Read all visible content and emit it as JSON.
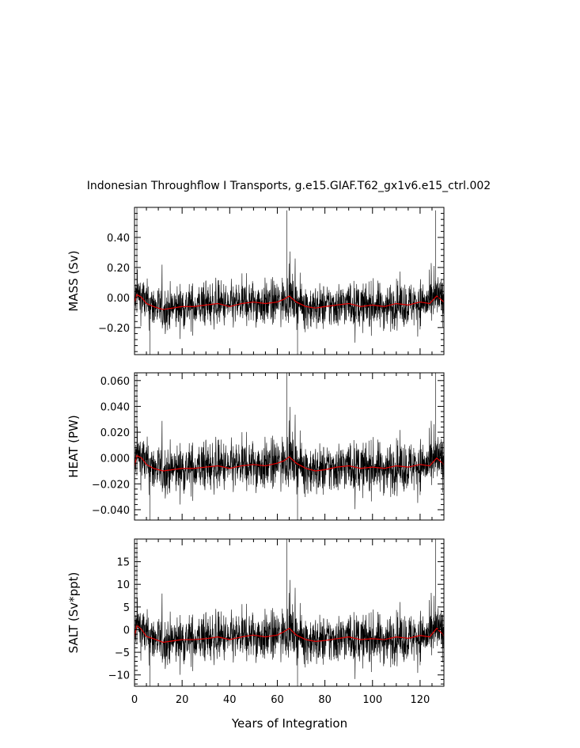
{
  "chart_data": {
    "title": "Indonesian Throughflow I Transports, g.e15.GIAF.T62_gx1v6.e15_ctrl.002",
    "xlabel": "Years of Integration",
    "xlim": [
      0,
      130
    ],
    "xticks": [
      0,
      20,
      40,
      60,
      80,
      100,
      120
    ],
    "xtick_labels": [
      "0",
      "20",
      "40",
      "60",
      "80",
      "100",
      "120"
    ],
    "colors": {
      "raw": "#000000",
      "smoothed": "#e00000"
    },
    "panels": [
      {
        "type": "line",
        "ylabel": "MASS (Sv)",
        "ylim": [
          -0.38,
          0.6
        ],
        "yticks": [
          -0.2,
          0.0,
          0.2,
          0.4
        ],
        "ytick_labels": [
          "−0.20",
          "0.00",
          "0.20",
          "0.40"
        ],
        "raw_mean": -0.05,
        "raw_amp": 0.1,
        "smoothed_path": [
          [
            0,
            -0.03
          ],
          [
            1,
            0.02
          ],
          [
            3,
            0.0
          ],
          [
            5,
            -0.04
          ],
          [
            8,
            -0.06
          ],
          [
            12,
            -0.08
          ],
          [
            16,
            -0.07
          ],
          [
            20,
            -0.06
          ],
          [
            25,
            -0.06
          ],
          [
            30,
            -0.05
          ],
          [
            35,
            -0.04
          ],
          [
            40,
            -0.06
          ],
          [
            45,
            -0.04
          ],
          [
            50,
            -0.03
          ],
          [
            55,
            -0.04
          ],
          [
            60,
            -0.03
          ],
          [
            63,
            -0.01
          ],
          [
            65,
            0.01
          ],
          [
            68,
            -0.03
          ],
          [
            72,
            -0.06
          ],
          [
            76,
            -0.07
          ],
          [
            80,
            -0.06
          ],
          [
            85,
            -0.05
          ],
          [
            90,
            -0.04
          ],
          [
            95,
            -0.06
          ],
          [
            100,
            -0.05
          ],
          [
            105,
            -0.06
          ],
          [
            110,
            -0.04
          ],
          [
            115,
            -0.05
          ],
          [
            120,
            -0.03
          ],
          [
            124,
            -0.04
          ],
          [
            127,
            0.01
          ],
          [
            130,
            -0.03
          ]
        ],
        "spikes": [
          [
            1,
            0.6
          ],
          [
            6.5,
            -0.38
          ],
          [
            64,
            0.58
          ],
          [
            68.5,
            -0.38
          ],
          [
            126.5,
            0.58
          ]
        ]
      },
      {
        "type": "line",
        "ylabel": "HEAT (PW)",
        "ylim": [
          -0.048,
          0.066
        ],
        "yticks": [
          -0.04,
          -0.02,
          0.0,
          0.02,
          0.04,
          0.06
        ],
        "ytick_labels": [
          "−0.040",
          "−0.020",
          "0.000",
          "0.020",
          "0.040",
          "0.060"
        ],
        "raw_mean": -0.007,
        "raw_amp": 0.013,
        "smoothed_path": [
          [
            0,
            -0.006
          ],
          [
            1,
            0.002
          ],
          [
            3,
            0.0
          ],
          [
            5,
            -0.005
          ],
          [
            8,
            -0.008
          ],
          [
            12,
            -0.01
          ],
          [
            16,
            -0.009
          ],
          [
            20,
            -0.008
          ],
          [
            25,
            -0.008
          ],
          [
            30,
            -0.007
          ],
          [
            35,
            -0.006
          ],
          [
            40,
            -0.008
          ],
          [
            45,
            -0.006
          ],
          [
            50,
            -0.005
          ],
          [
            55,
            -0.006
          ],
          [
            60,
            -0.004
          ],
          [
            63,
            -0.002
          ],
          [
            65,
            0.001
          ],
          [
            68,
            -0.004
          ],
          [
            72,
            -0.008
          ],
          [
            76,
            -0.01
          ],
          [
            80,
            -0.009
          ],
          [
            85,
            -0.007
          ],
          [
            90,
            -0.006
          ],
          [
            95,
            -0.008
          ],
          [
            100,
            -0.007
          ],
          [
            105,
            -0.008
          ],
          [
            110,
            -0.006
          ],
          [
            115,
            -0.007
          ],
          [
            120,
            -0.005
          ],
          [
            124,
            -0.006
          ],
          [
            127,
            0.0
          ],
          [
            130,
            -0.005
          ]
        ],
        "spikes": [
          [
            1,
            0.066
          ],
          [
            6.5,
            -0.048
          ],
          [
            64,
            0.066
          ],
          [
            68.5,
            -0.048
          ],
          [
            126.5,
            0.066
          ]
        ]
      },
      {
        "type": "line",
        "ylabel": "SALT (Sv*ppt)",
        "ylim": [
          -12.5,
          20
        ],
        "yticks": [
          -10,
          -5,
          0,
          5,
          10,
          15
        ],
        "ytick_labels": [
          "−10",
          "−5",
          "0",
          "5",
          "10",
          "15"
        ],
        "raw_mean": -1.6,
        "raw_amp": 3.6,
        "smoothed_path": [
          [
            0,
            -1.5
          ],
          [
            1,
            1.0
          ],
          [
            3,
            0.0
          ],
          [
            5,
            -1.5
          ],
          [
            8,
            -2.0
          ],
          [
            12,
            -2.8
          ],
          [
            16,
            -2.5
          ],
          [
            20,
            -2.2
          ],
          [
            25,
            -2.2
          ],
          [
            30,
            -2.0
          ],
          [
            35,
            -1.6
          ],
          [
            40,
            -2.2
          ],
          [
            45,
            -1.6
          ],
          [
            50,
            -1.2
          ],
          [
            55,
            -1.6
          ],
          [
            60,
            -1.2
          ],
          [
            63,
            -0.4
          ],
          [
            65,
            0.3
          ],
          [
            68,
            -1.2
          ],
          [
            72,
            -2.2
          ],
          [
            76,
            -2.6
          ],
          [
            80,
            -2.4
          ],
          [
            85,
            -2.0
          ],
          [
            90,
            -1.6
          ],
          [
            95,
            -2.2
          ],
          [
            100,
            -2.0
          ],
          [
            105,
            -2.2
          ],
          [
            110,
            -1.6
          ],
          [
            115,
            -1.9
          ],
          [
            120,
            -1.3
          ],
          [
            124,
            -1.6
          ],
          [
            127,
            0.3
          ],
          [
            130,
            -1.3
          ]
        ],
        "spikes": [
          [
            1,
            20
          ],
          [
            6.5,
            -12.5
          ],
          [
            64,
            20
          ],
          [
            68.5,
            -12.5
          ],
          [
            126.5,
            20
          ]
        ]
      }
    ]
  }
}
